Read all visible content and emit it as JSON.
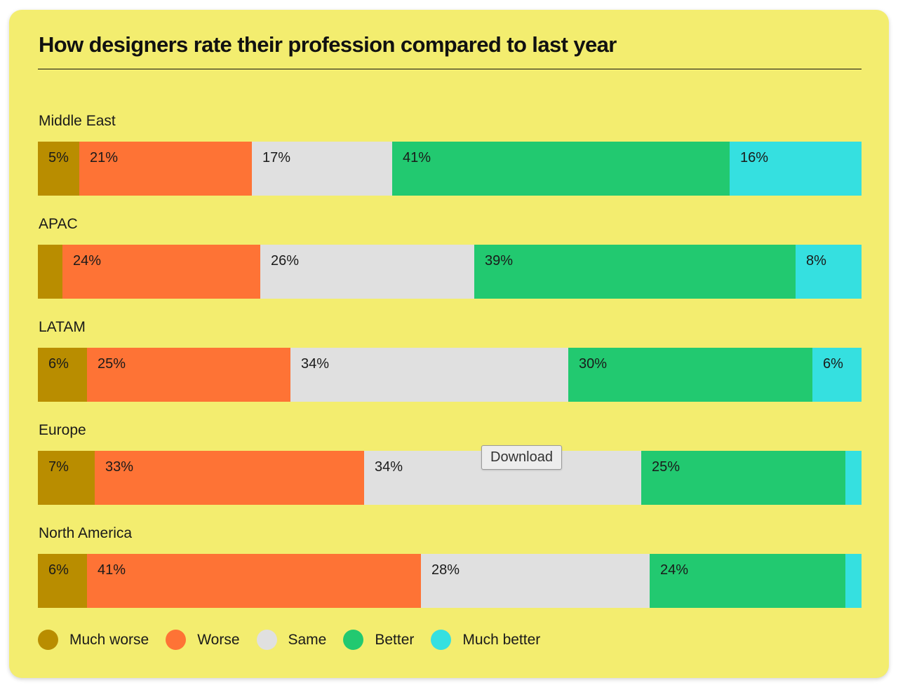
{
  "chart_data": {
    "type": "bar",
    "orientation": "horizontal",
    "stacked": true,
    "title": "How designers rate their profession compared to last year",
    "categories": [
      "Middle East",
      "APAC",
      "LATAM",
      "Europe",
      "North America"
    ],
    "series": [
      {
        "name": "Much worse",
        "color": "#b98d00",
        "values": [
          5,
          3,
          6,
          7,
          6
        ],
        "labels": [
          "5%",
          "",
          "6%",
          "7%",
          "6%"
        ]
      },
      {
        "name": "Worse",
        "color": "#fe7335",
        "values": [
          21,
          24,
          25,
          33,
          41
        ],
        "labels": [
          "21%",
          "24%",
          "25%",
          "33%",
          "41%"
        ]
      },
      {
        "name": "Same",
        "color": "#e0e0e0",
        "values": [
          17,
          26,
          34,
          34,
          28
        ],
        "labels": [
          "17%",
          "26%",
          "34%",
          "34%",
          "28%"
        ]
      },
      {
        "name": "Better",
        "color": "#22c970",
        "values": [
          41,
          39,
          30,
          25,
          24
        ],
        "labels": [
          "41%",
          "39%",
          "30%",
          "25%",
          "24%"
        ]
      },
      {
        "name": "Much better",
        "color": "#35e0e0",
        "values": [
          16,
          8,
          6,
          2,
          2
        ],
        "labels": [
          "16%",
          "8%",
          "6%",
          "",
          ""
        ]
      }
    ],
    "legend_position": "bottom-left"
  },
  "tooltip": {
    "label": "Download"
  },
  "colors": {
    "background": "#f3ed6f",
    "text": "#1a1a1a"
  }
}
